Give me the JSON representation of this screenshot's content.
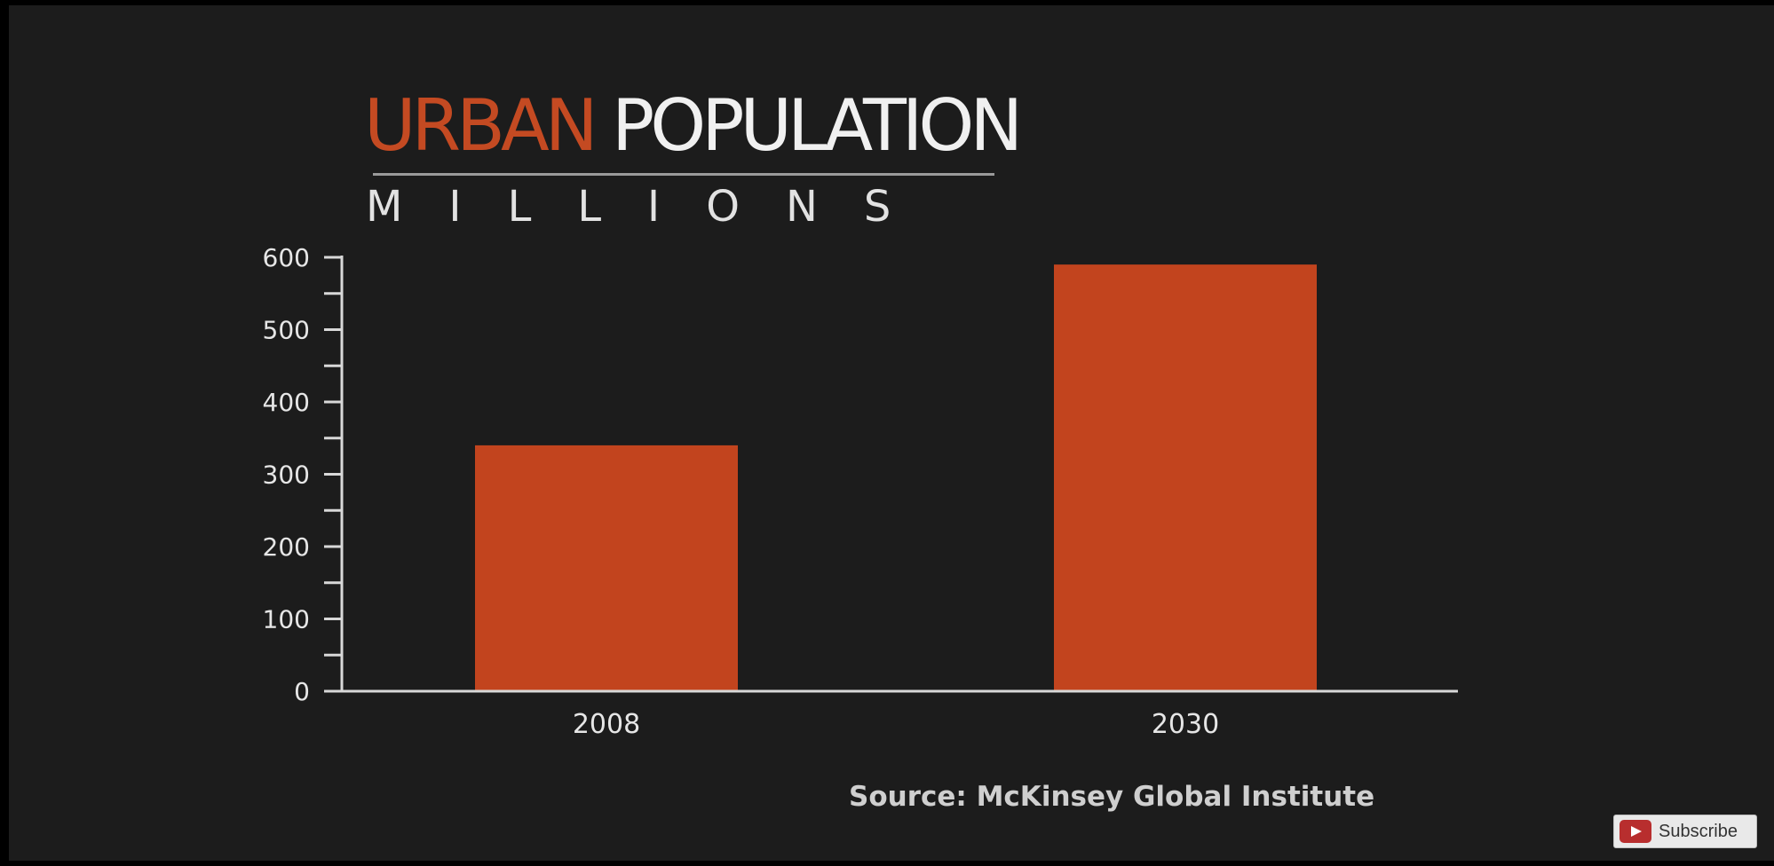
{
  "header": {
    "title_part1": "URBAN",
    "title_part2": "POPULATION",
    "subtitle": "MILLIONS"
  },
  "chart_data": {
    "type": "bar",
    "categories": [
      "2008",
      "2030"
    ],
    "values": [
      340,
      590
    ],
    "title": "URBAN POPULATION",
    "subtitle": "MILLIONS",
    "xlabel": "",
    "ylabel": "",
    "ylim": [
      0,
      600
    ],
    "yticks": [
      0,
      100,
      200,
      300,
      400,
      500,
      600
    ],
    "grid": false,
    "bar_color": "#c2441e",
    "axis_color": "#d8d8d8"
  },
  "footer": {
    "source": "Source: McKinsey Global Institute"
  },
  "overlay": {
    "subscribe_label": "Subscribe",
    "subscribe_icon": "youtube-play-icon",
    "icon_color": "#b82e2e"
  }
}
